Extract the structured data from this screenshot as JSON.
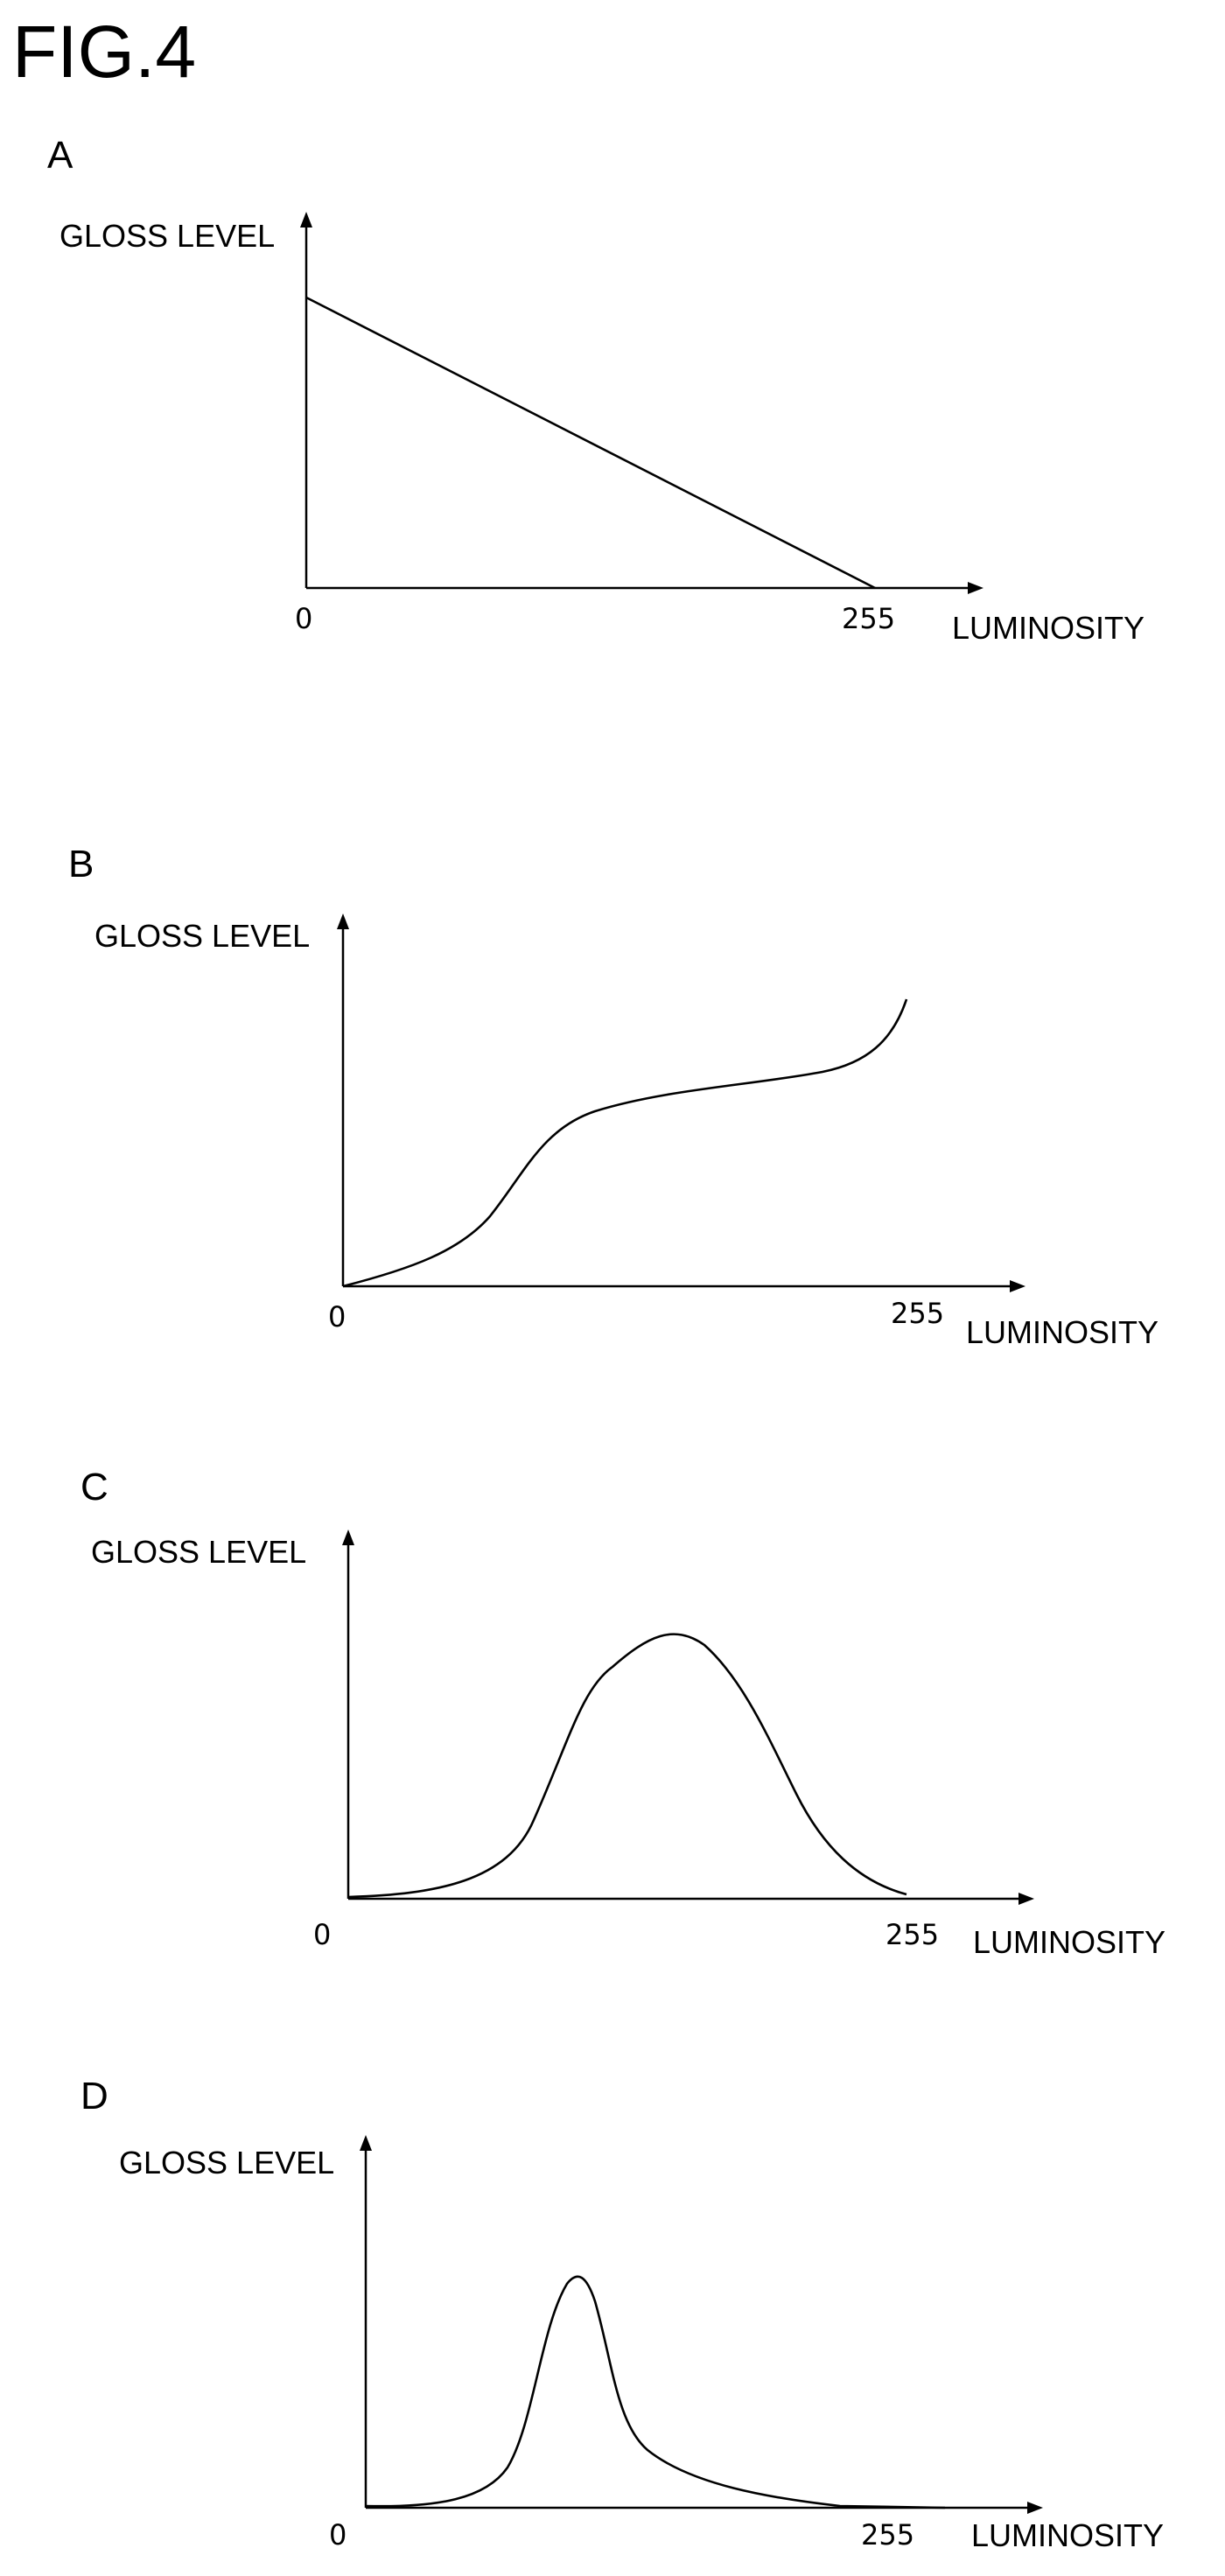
{
  "figure": {
    "title": "FIG.4"
  },
  "panels": [
    {
      "id": "A",
      "letter": "A",
      "ylabel": "GLOSS LEVEL",
      "xlabel": "LUMINOSITY",
      "x_min_label": "0",
      "x_max_label": "255",
      "curve_shape": "linear-decreasing"
    },
    {
      "id": "B",
      "letter": "B",
      "ylabel": "GLOSS LEVEL",
      "xlabel": "LUMINOSITY",
      "x_min_label": "0",
      "x_max_label": "255",
      "curve_shape": "increasing-s-curve"
    },
    {
      "id": "C",
      "letter": "C",
      "ylabel": "GLOSS LEVEL",
      "xlabel": "LUMINOSITY",
      "x_min_label": "0",
      "x_max_label": "255",
      "curve_shape": "broad-peak"
    },
    {
      "id": "D",
      "letter": "D",
      "ylabel": "GLOSS LEVEL",
      "xlabel": "LUMINOSITY",
      "x_min_label": "0",
      "x_max_label": "255",
      "curve_shape": "narrow-peak"
    }
  ]
}
